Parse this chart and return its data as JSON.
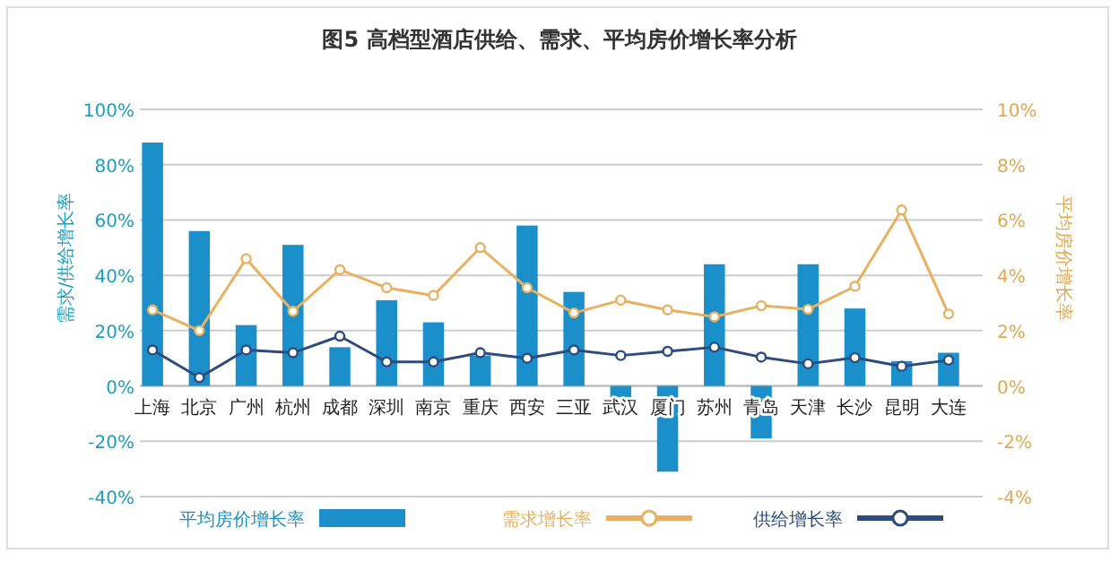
{
  "chart_data": {
    "type": "bar",
    "title": "图5 高档型酒店供给、需求、平均房价增长率分析",
    "ylabel": "需求/供给增长率",
    "y2label": "平均房价增长率",
    "categories": [
      "上海",
      "北京",
      "广州",
      "杭州",
      "成都",
      "深圳",
      "南京",
      "重庆",
      "西安",
      "三亚",
      "武汉",
      "厦门",
      "苏州",
      "青岛",
      "天津",
      "长沙",
      "昆明",
      "大连"
    ],
    "series": [
      {
        "name": "平均房价增长率",
        "axis": "y2",
        "color": "#1a8fc9",
        "values": [
          8.8,
          5.6,
          2.2,
          5.1,
          1.4,
          3.1,
          2.3,
          1.1,
          5.8,
          3.4,
          -0.4,
          -3.1,
          4.4,
          -1.9,
          4.4,
          2.8,
          0.9,
          1.2
        ]
      },
      {
        "name": "需求增长率",
        "type": "line",
        "color": "#e8b060",
        "values": [
          27.5,
          20,
          46,
          27,
          42,
          35.5,
          32.7,
          50,
          35.5,
          26.4,
          31,
          27.5,
          25,
          29,
          27.7,
          36,
          63.6,
          26
        ]
      },
      {
        "name": "供给增长率",
        "type": "line",
        "color": "#2d4b7e",
        "values": [
          13,
          3,
          13,
          12,
          18,
          8.7,
          8.7,
          12,
          10,
          13,
          11,
          12.5,
          14,
          10.4,
          8,
          10.2,
          7.1,
          9.3
        ]
      }
    ],
    "ylim": [
      -40,
      100
    ],
    "yticks": [
      {
        "value": -40,
        "label": "-40%"
      },
      {
        "value": -20,
        "label": "-20%"
      },
      {
        "value": 0,
        "label": "0%"
      },
      {
        "value": 20,
        "label": "20%"
      },
      {
        "value": 40,
        "label": "40%"
      },
      {
        "value": 60,
        "label": "60%"
      },
      {
        "value": 80,
        "label": "80%"
      },
      {
        "value": 100,
        "label": "100%"
      }
    ],
    "y2lim": [
      -4,
      10
    ],
    "y2ticks": [
      {
        "value": -4,
        "label": "-4%"
      },
      {
        "value": -2,
        "label": "-2%"
      },
      {
        "value": 0,
        "label": "0%"
      },
      {
        "value": 2,
        "label": "2%"
      },
      {
        "value": 4,
        "label": "4%"
      },
      {
        "value": 6,
        "label": "6%"
      },
      {
        "value": 8,
        "label": "8%"
      },
      {
        "value": 10,
        "label": "10%"
      }
    ],
    "grid": "y",
    "legend": "bottom",
    "marker": "circle",
    "line_style": "solid"
  }
}
